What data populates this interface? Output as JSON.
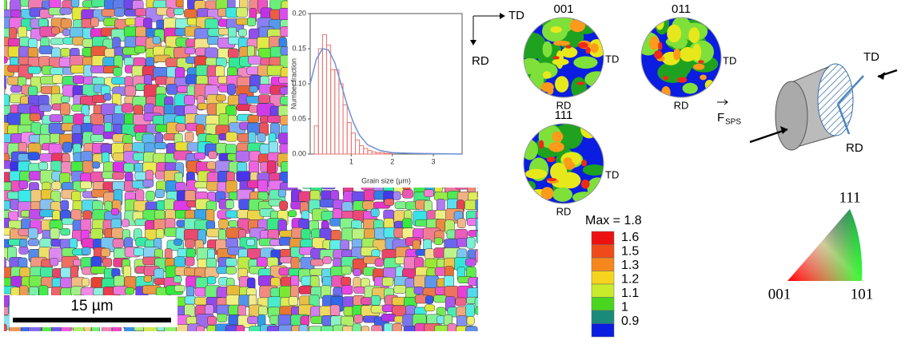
{
  "chart_data": {
    "type": "histogram",
    "x_label": "Grain size (µm)",
    "y_label": "Number fraction",
    "bins": [
      0.1,
      0.2,
      0.3,
      0.4,
      0.5,
      0.6,
      0.7,
      0.8,
      0.9,
      1.0,
      1.1,
      1.2,
      1.3,
      1.4,
      1.5,
      1.6,
      1.7,
      1.8,
      1.9,
      2.0
    ],
    "values": [
      0.04,
      0.15,
      0.17,
      0.155,
      0.12,
      0.12,
      0.1,
      0.07,
      0.045,
      0.03,
      0.02,
      0.012,
      0.008,
      0.005,
      0.003,
      0.002,
      0.002,
      0.001,
      0.001
    ],
    "color": "#e8756f",
    "fit": {
      "color": "#6f8fd6",
      "x": [
        0,
        0.15,
        0.3,
        0.45,
        0.6,
        0.75,
        0.9,
        1.05,
        1.2,
        1.4,
        1.7,
        2.0,
        2.5,
        3.7
      ],
      "values": [
        0.1,
        0.135,
        0.15,
        0.148,
        0.13,
        0.1,
        0.07,
        0.045,
        0.027,
        0.013,
        0.005,
        0.002,
        0.001,
        0
      ]
    },
    "xlim": [
      0,
      3.7
    ],
    "xticks": [
      1,
      2,
      3
    ],
    "ylim": [
      0,
      0.2
    ],
    "yticks": [
      {
        "value": 0,
        "label": "0.00"
      },
      {
        "value": 0.05,
        "label": "0.05"
      },
      {
        "value": 0.1,
        "label": "0.10"
      },
      {
        "value": 0.15,
        "label": "0.15"
      },
      {
        "value": 0.2,
        "label": "0.20"
      }
    ]
  },
  "scale_bar": "15 µm",
  "frame": {
    "td": "TD",
    "rd": "RD"
  },
  "pole_figures": [
    {
      "label": "001",
      "td": "TD",
      "rd": "RD"
    },
    {
      "label": "011",
      "td": "TD",
      "rd": "RD"
    },
    {
      "label": "111",
      "td": "TD",
      "rd": "RD"
    }
  ],
  "color_scale": {
    "title": "Max = 1.8",
    "levels": [
      1.6,
      1.5,
      1.3,
      1.2,
      1.1,
      1,
      0.9
    ]
  },
  "sample": {
    "force": "F",
    "force_sub": "SPS",
    "td": "TD",
    "rd": "RD"
  },
  "ipf": {
    "top": "111",
    "left": "001",
    "right": "101"
  }
}
